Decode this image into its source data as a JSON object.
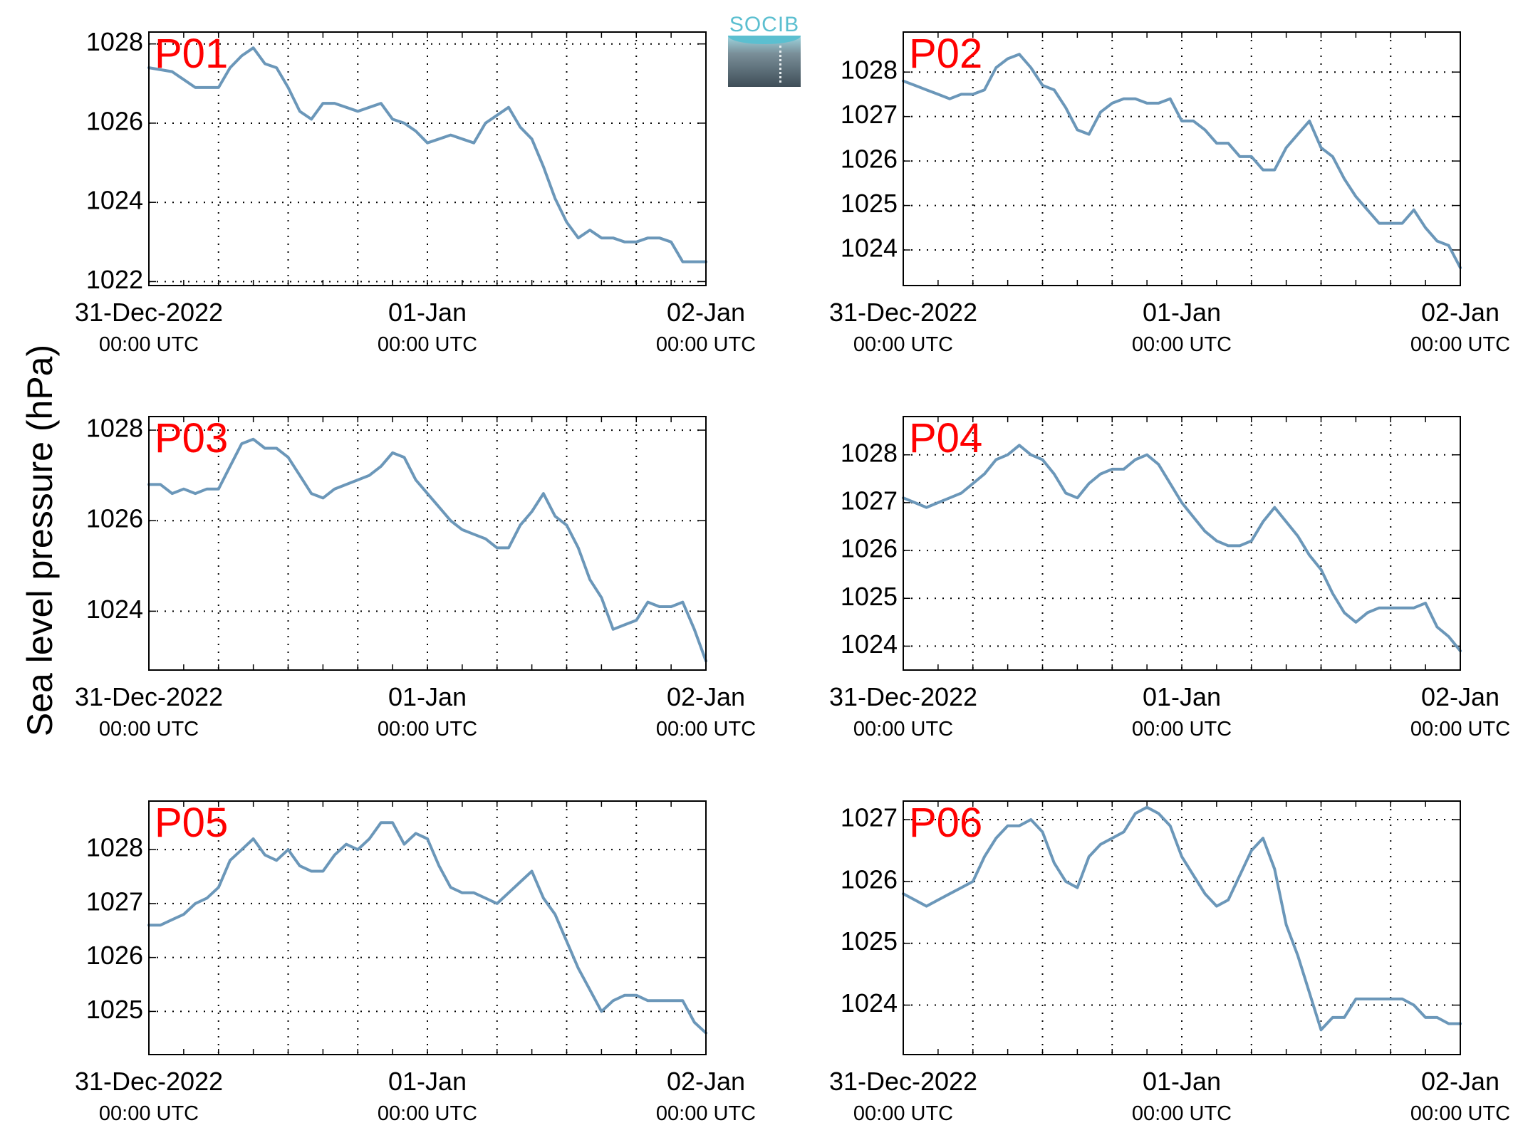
{
  "figure": {
    "ylabel": "Sea level pressure (hPa)",
    "logo_text": "SOCIB",
    "line_color": "#6b97b9",
    "panel_label_color": "#ff0000"
  },
  "chart_data": [
    {
      "type": "line",
      "title": "P01",
      "ylabel": "Sea level pressure (hPa)",
      "xlim": [
        "2022-12-31T00:00",
        "2023-01-02T00:00"
      ],
      "xticks": [
        {
          "line1": "31-Dec-2022",
          "line2": "00:00 UTC"
        },
        {
          "line1": "01-Jan",
          "line2": "00:00 UTC"
        },
        {
          "line1": "02-Jan",
          "line2": "00:00 UTC"
        }
      ],
      "ylim": [
        1021.9,
        1028.3
      ],
      "yticks": [
        1022,
        1024,
        1026,
        1028
      ],
      "grid": true,
      "series": [
        {
          "x_hours": [
            0,
            2,
            4,
            5,
            6,
            7,
            8,
            9,
            10,
            11,
            12,
            13,
            14,
            15,
            16,
            17,
            18,
            19,
            20,
            21,
            22,
            23,
            24,
            25,
            26,
            27,
            28,
            29,
            30,
            31,
            32,
            33,
            34,
            35,
            36,
            37,
            38,
            39,
            40,
            41,
            42,
            43,
            44,
            45,
            46,
            47,
            48
          ],
          "values": [
            1027.4,
            1027.3,
            1026.9,
            1026.9,
            1026.9,
            1027.4,
            1027.7,
            1027.9,
            1027.5,
            1027.4,
            1026.9,
            1026.3,
            1026.1,
            1026.5,
            1026.5,
            1026.4,
            1026.3,
            1026.4,
            1026.5,
            1026.1,
            1026.0,
            1025.8,
            1025.5,
            1025.6,
            1025.7,
            1025.6,
            1025.5,
            1026.0,
            1026.2,
            1026.4,
            1025.9,
            1025.6,
            1024.9,
            1024.1,
            1023.5,
            1023.1,
            1023.3,
            1023.1,
            1023.1,
            1023.0,
            1023.0,
            1023.1,
            1023.1,
            1023.0,
            1022.5,
            1022.5,
            1022.5
          ]
        }
      ]
    },
    {
      "type": "line",
      "title": "P02",
      "ylabel": "Sea level pressure (hPa)",
      "xlim": [
        "2022-12-31T00:00",
        "2023-01-02T00:00"
      ],
      "xticks": [
        {
          "line1": "31-Dec-2022",
          "line2": "00:00 UTC"
        },
        {
          "line1": "01-Jan",
          "line2": "00:00 UTC"
        },
        {
          "line1": "02-Jan",
          "line2": "00:00 UTC"
        }
      ],
      "ylim": [
        1023.2,
        1028.9
      ],
      "yticks": [
        1024,
        1025,
        1026,
        1027,
        1028
      ],
      "grid": true,
      "series": [
        {
          "x_hours": [
            0,
            1,
            2,
            3,
            4,
            5,
            6,
            7,
            8,
            9,
            10,
            11,
            12,
            13,
            14,
            15,
            16,
            17,
            18,
            19,
            20,
            21,
            22,
            23,
            24,
            25,
            26,
            27,
            28,
            29,
            30,
            31,
            32,
            33,
            34,
            35,
            36,
            37,
            38,
            39,
            40,
            41,
            42,
            43,
            44,
            45,
            46,
            47,
            48
          ],
          "values": [
            1027.8,
            1027.7,
            1027.6,
            1027.5,
            1027.4,
            1027.5,
            1027.5,
            1027.6,
            1028.1,
            1028.3,
            1028.4,
            1028.1,
            1027.7,
            1027.6,
            1027.2,
            1026.7,
            1026.6,
            1027.1,
            1027.3,
            1027.4,
            1027.4,
            1027.3,
            1027.3,
            1027.4,
            1026.9,
            1026.9,
            1026.7,
            1026.4,
            1026.4,
            1026.1,
            1026.1,
            1025.8,
            1025.8,
            1026.3,
            1026.6,
            1026.9,
            1026.3,
            1026.1,
            1025.6,
            1025.2,
            1024.9,
            1024.6,
            1024.6,
            1024.6,
            1024.9,
            1024.5,
            1024.2,
            1024.1,
            1023.6
          ]
        }
      ]
    },
    {
      "type": "line",
      "title": "P03",
      "ylabel": "Sea level pressure (hPa)",
      "xlim": [
        "2022-12-31T00:00",
        "2023-01-02T00:00"
      ],
      "xticks": [
        {
          "line1": "31-Dec-2022",
          "line2": "00:00 UTC"
        },
        {
          "line1": "01-Jan",
          "line2": "00:00 UTC"
        },
        {
          "line1": "02-Jan",
          "line2": "00:00 UTC"
        }
      ],
      "ylim": [
        1022.7,
        1028.3
      ],
      "yticks": [
        1024,
        1026,
        1028
      ],
      "grid": true,
      "series": [
        {
          "x_hours": [
            0,
            1,
            2,
            3,
            4,
            5,
            6,
            7,
            8,
            9,
            10,
            11,
            12,
            13,
            14,
            15,
            16,
            17,
            18,
            19,
            20,
            21,
            22,
            23,
            24,
            25,
            26,
            27,
            28,
            29,
            30,
            31,
            32,
            33,
            34,
            35,
            36,
            37,
            38,
            39,
            40,
            41,
            42,
            43,
            44,
            45,
            46,
            47,
            48
          ],
          "values": [
            1026.8,
            1026.8,
            1026.6,
            1026.7,
            1026.6,
            1026.7,
            1026.7,
            1027.2,
            1027.7,
            1027.8,
            1027.6,
            1027.6,
            1027.4,
            1027.0,
            1026.6,
            1026.5,
            1026.7,
            1026.8,
            1026.9,
            1027.0,
            1027.2,
            1027.5,
            1027.4,
            1026.9,
            1026.6,
            1026.3,
            1026.0,
            1025.8,
            1025.7,
            1025.6,
            1025.4,
            1025.4,
            1025.9,
            1026.2,
            1026.6,
            1026.1,
            1025.9,
            1025.4,
            1024.7,
            1024.3,
            1023.6,
            1023.7,
            1023.8,
            1024.2,
            1024.1,
            1024.1,
            1024.2,
            1023.6,
            1022.9
          ]
        }
      ]
    },
    {
      "type": "line",
      "title": "P04",
      "ylabel": "Sea level pressure (hPa)",
      "xlim": [
        "2022-12-31T00:00",
        "2023-01-02T00:00"
      ],
      "xticks": [
        {
          "line1": "31-Dec-2022",
          "line2": "00:00 UTC"
        },
        {
          "line1": "01-Jan",
          "line2": "00:00 UTC"
        },
        {
          "line1": "02-Jan",
          "line2": "00:00 UTC"
        }
      ],
      "ylim": [
        1023.5,
        1028.8
      ],
      "yticks": [
        1024,
        1025,
        1026,
        1027,
        1028
      ],
      "grid": true,
      "series": [
        {
          "x_hours": [
            0,
            1,
            2,
            3,
            4,
            5,
            6,
            7,
            8,
            9,
            10,
            11,
            12,
            13,
            14,
            15,
            16,
            17,
            18,
            19,
            20,
            21,
            22,
            23,
            24,
            25,
            26,
            27,
            28,
            29,
            30,
            31,
            32,
            33,
            34,
            35,
            36,
            37,
            38,
            39,
            40,
            41,
            42,
            43,
            44,
            45,
            46,
            47,
            48
          ],
          "values": [
            1027.1,
            1027.0,
            1026.9,
            1027.0,
            1027.1,
            1027.2,
            1027.4,
            1027.6,
            1027.9,
            1028.0,
            1028.2,
            1028.0,
            1027.9,
            1027.6,
            1027.2,
            1027.1,
            1027.4,
            1027.6,
            1027.7,
            1027.7,
            1027.9,
            1028.0,
            1027.8,
            1027.4,
            1027.0,
            1026.7,
            1026.4,
            1026.2,
            1026.1,
            1026.1,
            1026.2,
            1026.6,
            1026.9,
            1026.6,
            1026.3,
            1025.9,
            1025.6,
            1025.1,
            1024.7,
            1024.5,
            1024.7,
            1024.8,
            1024.8,
            1024.8,
            1024.8,
            1024.9,
            1024.4,
            1024.2,
            1023.9
          ]
        }
      ]
    },
    {
      "type": "line",
      "title": "P05",
      "ylabel": "Sea level pressure (hPa)",
      "xlim": [
        "2022-12-31T00:00",
        "2023-01-02T00:00"
      ],
      "xticks": [
        {
          "line1": "31-Dec-2022",
          "line2": "00:00 UTC"
        },
        {
          "line1": "01-Jan",
          "line2": "00:00 UTC"
        },
        {
          "line1": "02-Jan",
          "line2": "00:00 UTC"
        }
      ],
      "ylim": [
        1024.2,
        1028.9
      ],
      "yticks": [
        1025,
        1026,
        1027,
        1028
      ],
      "grid": true,
      "series": [
        {
          "x_hours": [
            0,
            1,
            2,
            3,
            4,
            5,
            6,
            7,
            8,
            9,
            10,
            11,
            12,
            13,
            14,
            15,
            16,
            17,
            18,
            19,
            20,
            21,
            22,
            23,
            24,
            25,
            26,
            27,
            28,
            29,
            30,
            31,
            32,
            33,
            34,
            35,
            36,
            37,
            38,
            39,
            40,
            41,
            42,
            43,
            44,
            45,
            46,
            47,
            48
          ],
          "values": [
            1026.6,
            1026.6,
            1026.7,
            1026.8,
            1027.0,
            1027.1,
            1027.3,
            1027.8,
            1028.0,
            1028.2,
            1027.9,
            1027.8,
            1028.0,
            1027.7,
            1027.6,
            1027.6,
            1027.9,
            1028.1,
            1028.0,
            1028.2,
            1028.5,
            1028.5,
            1028.1,
            1028.3,
            1028.2,
            1027.7,
            1027.3,
            1027.2,
            1027.2,
            1027.1,
            1027.0,
            1027.2,
            1027.4,
            1027.6,
            1027.1,
            1026.8,
            1026.3,
            1025.8,
            1025.4,
            1025.0,
            1025.2,
            1025.3,
            1025.3,
            1025.2,
            1025.2,
            1025.2,
            1025.2,
            1024.8,
            1024.6
          ]
        }
      ]
    },
    {
      "type": "line",
      "title": "P06",
      "ylabel": "Sea level pressure (hPa)",
      "xlim": [
        "2022-12-31T00:00",
        "2023-01-02T00:00"
      ],
      "xticks": [
        {
          "line1": "31-Dec-2022",
          "line2": "00:00 UTC"
        },
        {
          "line1": "01-Jan",
          "line2": "00:00 UTC"
        },
        {
          "line1": "02-Jan",
          "line2": "00:00 UTC"
        }
      ],
      "ylim": [
        1023.2,
        1027.3
      ],
      "yticks": [
        1024,
        1025,
        1026,
        1027
      ],
      "grid": true,
      "series": [
        {
          "x_hours": [
            0,
            1,
            2,
            3,
            4,
            5,
            6,
            7,
            8,
            9,
            10,
            11,
            12,
            13,
            14,
            15,
            16,
            17,
            18,
            19,
            20,
            21,
            22,
            23,
            24,
            25,
            26,
            27,
            28,
            29,
            30,
            31,
            32,
            33,
            34,
            35,
            36,
            37,
            38,
            39,
            40,
            41,
            42,
            43,
            44,
            45,
            46,
            47,
            48
          ],
          "values": [
            1025.8,
            1025.7,
            1025.6,
            1025.7,
            1025.8,
            1025.9,
            1026.0,
            1026.4,
            1026.7,
            1026.9,
            1026.9,
            1027.0,
            1026.8,
            1026.3,
            1026.0,
            1025.9,
            1026.4,
            1026.6,
            1026.7,
            1026.8,
            1027.1,
            1027.2,
            1027.1,
            1026.9,
            1026.4,
            1026.1,
            1025.8,
            1025.6,
            1025.7,
            1026.1,
            1026.5,
            1026.7,
            1026.2,
            1025.3,
            1024.8,
            1024.2,
            1023.6,
            1023.8,
            1023.8,
            1024.1,
            1024.1,
            1024.1,
            1024.1,
            1024.1,
            1024.0,
            1023.8,
            1023.8,
            1023.7,
            1023.7
          ]
        }
      ]
    }
  ]
}
